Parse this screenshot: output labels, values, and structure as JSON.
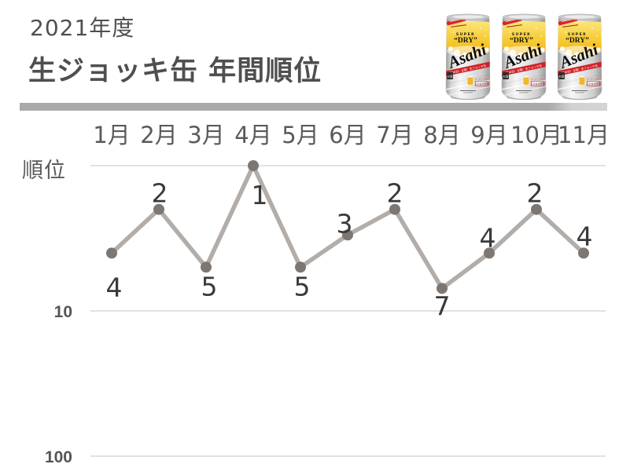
{
  "header": {
    "fiscal_year": "2021年度",
    "title": "生ジョッキ缶 年間順位"
  },
  "product": {
    "image_name": "asahi-super-dry-nama-jokki-beer-cans",
    "can_count": 3,
    "can": {
      "brand": "Asahi",
      "super_label": "SUPER",
      "dry_label": "“DRY”",
      "band_text": "日本初！全開！生ジョッキ缶",
      "box_line1": "スーパードライ",
      "box_line2": "生ジョッキ缶",
      "side_label": "お酒"
    }
  },
  "chart_data": {
    "type": "line",
    "title": "生ジョッキ缶 年間順位",
    "categories": [
      "1月",
      "2月",
      "3月",
      "4月",
      "5月",
      "6月",
      "7月",
      "8月",
      "9月",
      "10月",
      "11月"
    ],
    "values": [
      4,
      2,
      5,
      1,
      5,
      3,
      2,
      7,
      4,
      2,
      4
    ],
    "xlabel": "",
    "ylabel": "順位",
    "y_scale": "log10",
    "y_inverted": true,
    "ylim": [
      1,
      100
    ],
    "gridline_values": [
      1,
      10,
      100
    ],
    "y_tick_labels": [
      {
        "value": 10,
        "label": "10"
      },
      {
        "value": 100,
        "label": "100"
      }
    ],
    "legend": false,
    "grid": true,
    "colors": {
      "line": "#b3ada9",
      "marker": "#7d7773",
      "point_label": "#3a3a3a",
      "axis_text": "#5a5a5a",
      "gridline": "#d9d9d9"
    }
  }
}
